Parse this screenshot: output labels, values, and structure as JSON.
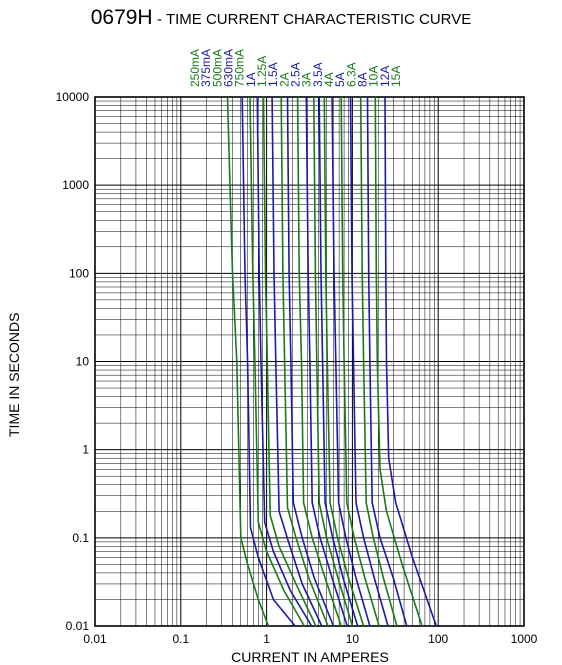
{
  "chart_data": {
    "type": "line",
    "title": "0679H",
    "subtitle": "- TIME CURRENT CHARACTERISTIC CURVE",
    "xlabel": "CURRENT IN AMPERES",
    "ylabel": "TIME IN SECONDS",
    "x_scale": "log",
    "y_scale": "log",
    "xlim": [
      0.01,
      1000
    ],
    "ylim": [
      0.01,
      10000
    ],
    "x_ticks": [
      "0.01",
      "0.1",
      "1",
      "10",
      "100",
      "1000"
    ],
    "y_ticks": [
      "0.01",
      "0.1",
      "1",
      "10",
      "100",
      "1000",
      "10000"
    ],
    "grid": true,
    "colors": {
      "green": "#1a7a1a",
      "blue": "#1a1aa8",
      "grid": "#000000"
    },
    "series": [
      {
        "name": "250mA",
        "color": "green",
        "x": [
          0.35,
          0.4,
          0.45,
          0.5,
          0.6,
          0.8,
          1.05
        ],
        "y": [
          10000,
          100,
          10,
          0.1,
          0.05,
          0.02,
          0.01
        ]
      },
      {
        "name": "375mA",
        "color": "blue",
        "x": [
          0.52,
          0.56,
          0.6,
          0.65,
          0.8,
          1.2,
          2.15
        ],
        "y": [
          10000,
          100,
          10,
          0.13,
          0.06,
          0.02,
          0.01
        ]
      },
      {
        "name": "500mA",
        "color": "green",
        "x": [
          0.64,
          0.69,
          0.73,
          0.8,
          1.0,
          1.6,
          2.75
        ],
        "y": [
          10000,
          100,
          10,
          0.15,
          0.07,
          0.025,
          0.01
        ]
      },
      {
        "name": "630mA",
        "color": "blue",
        "x": [
          0.78,
          0.82,
          0.86,
          0.95,
          1.2,
          1.9,
          3.35
        ],
        "y": [
          10000,
          100,
          10,
          0.15,
          0.07,
          0.025,
          0.01
        ]
      },
      {
        "name": "750mA",
        "color": "green",
        "x": [
          0.92,
          0.97,
          1.02,
          1.1,
          1.4,
          2.2,
          3.75
        ],
        "y": [
          10000,
          100,
          10,
          0.18,
          0.08,
          0.03,
          0.01
        ]
      },
      {
        "name": "1A",
        "color": "blue",
        "x": [
          1.16,
          1.22,
          1.28,
          1.4,
          1.8,
          2.6,
          4.4
        ],
        "y": [
          10000,
          100,
          10,
          0.2,
          0.09,
          0.03,
          0.01
        ]
      },
      {
        "name": "1.25A",
        "color": "green",
        "x": [
          1.48,
          1.55,
          1.62,
          1.75,
          2.2,
          3.1,
          5.2
        ],
        "y": [
          10000,
          100,
          10,
          0.22,
          0.1,
          0.035,
          0.01
        ]
      },
      {
        "name": "1.5A",
        "color": "blue",
        "x": [
          1.75,
          1.83,
          1.92,
          2.05,
          2.6,
          3.6,
          6.0
        ],
        "y": [
          10000,
          100,
          10,
          0.25,
          0.1,
          0.035,
          0.01
        ]
      },
      {
        "name": "2A",
        "color": "green",
        "x": [
          2.3,
          2.4,
          2.55,
          2.7,
          3.4,
          4.8,
          7.4
        ],
        "y": [
          10000,
          100,
          10,
          0.25,
          0.1,
          0.035,
          0.01
        ]
      },
      {
        "name": "2.5A",
        "color": "blue",
        "x": [
          2.9,
          3.05,
          3.2,
          3.4,
          4.2,
          5.8,
          8.7
        ],
        "y": [
          10000,
          100,
          10,
          0.25,
          0.1,
          0.035,
          0.01
        ]
      },
      {
        "name": "3A",
        "color": "green",
        "x": [
          3.55,
          3.7,
          3.85,
          4.1,
          5.0,
          6.8,
          10.0
        ],
        "y": [
          10000,
          100,
          10,
          0.25,
          0.1,
          0.035,
          0.01
        ]
      },
      {
        "name": "3.5A",
        "color": "blue",
        "x": [
          4.1,
          4.3,
          4.5,
          4.8,
          5.9,
          7.8,
          11.5
        ],
        "y": [
          10000,
          100,
          10,
          0.25,
          0.1,
          0.035,
          0.01
        ]
      },
      {
        "name": "4A",
        "color": "green",
        "x": [
          4.7,
          4.9,
          5.1,
          5.5,
          6.7,
          9.0,
          13.5
        ],
        "y": [
          10000,
          100,
          10,
          0.25,
          0.1,
          0.035,
          0.01
        ]
      },
      {
        "name": "5A",
        "color": "blue",
        "x": [
          5.8,
          6.1,
          6.4,
          6.9,
          8.4,
          11.0,
          16.0
        ],
        "y": [
          10000,
          100,
          10,
          0.25,
          0.1,
          0.035,
          0.01
        ]
      },
      {
        "name": "6.3A",
        "color": "green",
        "x": [
          7.4,
          7.7,
          8.0,
          8.6,
          10.5,
          14.0,
          20.5
        ],
        "y": [
          10000,
          100,
          10,
          0.25,
          0.1,
          0.035,
          0.01
        ]
      },
      {
        "name": "8A",
        "color": "blue",
        "x": [
          9.5,
          9.9,
          10.3,
          11.0,
          13.5,
          18.0,
          26.0
        ],
        "y": [
          10000,
          100,
          10,
          0.25,
          0.1,
          0.035,
          0.01
        ]
      },
      {
        "name": "10A",
        "color": "green",
        "x": [
          12.5,
          13.0,
          13.5,
          14.5,
          17.5,
          23.0,
          33.0
        ],
        "y": [
          10000,
          100,
          10,
          0.25,
          0.1,
          0.035,
          0.01
        ]
      },
      {
        "name": "12A",
        "color": "blue",
        "x": [
          15.0,
          15.5,
          16.0,
          17.0,
          21.0,
          30.0,
          43.0
        ],
        "y": [
          10000,
          100,
          10,
          0.25,
          0.1,
          0.035,
          0.01
        ]
      },
      {
        "name": "15A",
        "color": "green",
        "x": [
          18.5,
          19.0,
          19.5,
          21.0,
          25.0,
          38.0,
          65.0
        ],
        "y": [
          10000,
          100,
          10,
          0.6,
          0.2,
          0.05,
          0.01
        ]
      },
      {
        "name": "",
        "color": "blue",
        "x": [
          24.0,
          24.5,
          25.0,
          26.5,
          32.0,
          50.0,
          95.0
        ],
        "y": [
          10000,
          100,
          10,
          0.8,
          0.25,
          0.06,
          0.01
        ]
      }
    ]
  }
}
